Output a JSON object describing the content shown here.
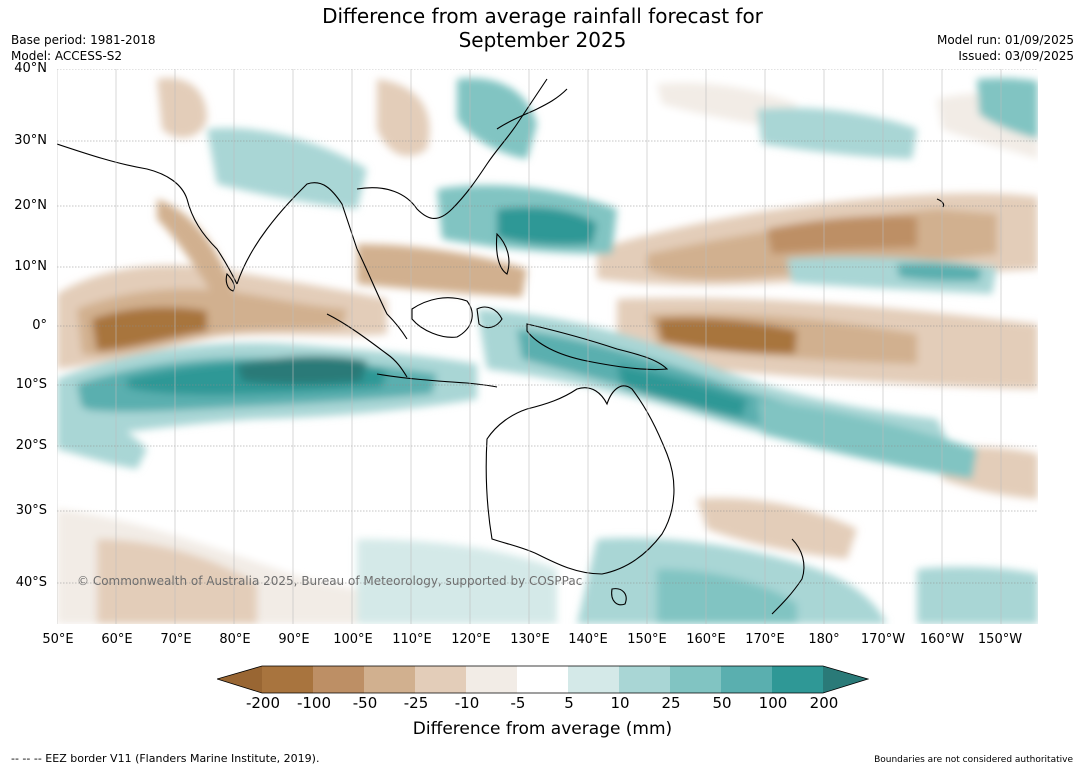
{
  "title": {
    "line1": "Difference from average rainfall forecast for",
    "line2": "September 2025"
  },
  "meta": {
    "base_period": "Base period: 1981-2018",
    "model": "Model: ACCESS-S2",
    "model_run": "Model run: 01/09/2025",
    "issued": "Issued: 03/09/2025"
  },
  "lat_labels": [
    "40°N",
    "30°N",
    "20°N",
    "10°N",
    "0°",
    "10°S",
    "20°S",
    "30°S",
    "40°S"
  ],
  "lon_labels": [
    "50°E",
    "60°E",
    "70°E",
    "80°E",
    "90°E",
    "100°E",
    "110°E",
    "120°E",
    "130°E",
    "140°E",
    "150°E",
    "160°E",
    "170°E",
    "180°",
    "170°W",
    "160°W",
    "150°W"
  ],
  "copyright": "© Commonwealth of Australia 2025, Bureau of Meteorology, supported by COSPPac",
  "colorbar": {
    "ticks": [
      "-200",
      "-100",
      "-50",
      "-25",
      "-10",
      "-5",
      "5",
      "10",
      "25",
      "50",
      "100",
      "200"
    ],
    "colors": [
      "#a8743e",
      "#bd8f65",
      "#d1b08f",
      "#e3cdb9",
      "#f2ece6",
      "#ffffff",
      "#d4e9e8",
      "#a9d6d5",
      "#81c4c2",
      "#5aafaf",
      "#2f9896"
    ],
    "under_color": "#996633",
    "over_color": "#2a7a78",
    "label": "Difference from average (mm)"
  },
  "footer": {
    "eez": "-- -- -- EEZ border V11 (Flanders Marine Institute, 2019).",
    "disclaimer": "Boundaries are not considered authoritative"
  }
}
